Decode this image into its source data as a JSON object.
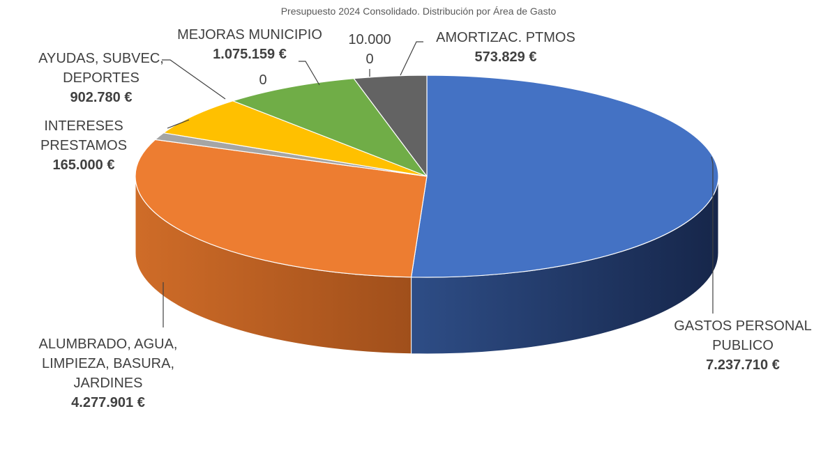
{
  "chart_data": {
    "type": "pie",
    "title": "Presupuesto 2024 Consolidado. Distribución por Área de Gasto",
    "slices": [
      {
        "name": "GASTOS PERSONAL PUBLICO",
        "value": 7237710,
        "value_label": "7.237.710 €",
        "color": "#4472C4"
      },
      {
        "name": "ALUMBRADO, AGUA, LIMPIEZA, BASURA, JARDINES",
        "value": 4277901,
        "value_label": "4.277.901 €",
        "color": "#ED7D31"
      },
      {
        "name": "INTERESES PRESTAMOS",
        "value": 165000,
        "value_label": "165.000 €",
        "color": "#A5A5A5"
      },
      {
        "name": "AYUDAS, SUBVEC, DEPORTES",
        "value": 902780,
        "value_label": "902.780 €",
        "color": "#FFC000"
      },
      {
        "name": "",
        "value": 0,
        "value_label": "0",
        "color": "#5B9BD5"
      },
      {
        "name": "MEJORAS MUNICIPIO",
        "value": 1075159,
        "value_label": "1.075.159 €",
        "color": "#70AD47"
      },
      {
        "name": "10.000",
        "value": 0,
        "value_label": "0",
        "color": "#264478"
      },
      {
        "name": "AMORTIZAC. PTMOS",
        "value": 573829,
        "value_label": "573.829 €",
        "color": "#636363"
      }
    ],
    "labels": {
      "gastos_l1": "GASTOS PERSONAL",
      "gastos_l2": "PUBLICO",
      "alumbrado_l1": "ALUMBRADO, AGUA,",
      "alumbrado_l2": "LIMPIEZA, BASURA,",
      "alumbrado_l3": "JARDINES",
      "intereses_l1": "INTERESES PRESTAMOS",
      "ayudas_l1": "AYUDAS, SUBVEC,",
      "ayudas_l2": "DEPORTES",
      "zero_a": "0",
      "mejoras_l1": "MEJORAS MUNICIPIO",
      "ten_l1": "10.000",
      "ten_l2": "0",
      "amort_l1": "AMORTIZAC. PTMOS"
    },
    "legend": "none"
  }
}
